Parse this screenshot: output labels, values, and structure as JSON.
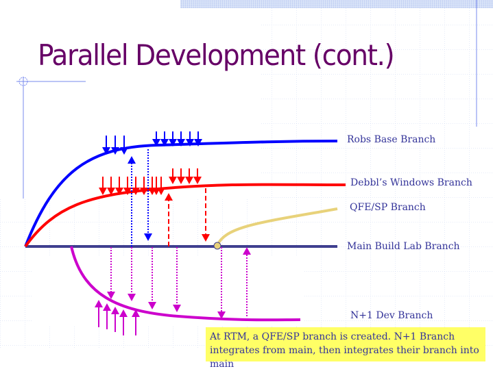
{
  "title": "Parallel Development (cont.)",
  "branches": {
    "robs_base": "Robs Base Branch",
    "debbl_windows": "Debbl’s Windows Branch",
    "qfe_sp": "QFE/SP Branch",
    "main_build_lab": "Main Build Lab Branch",
    "n1_dev": "N+1 Dev Branch"
  },
  "note": "At RTM, a QFE/SP branch is created. N+1 Branch integrates from main, then integrates their branch into main",
  "colors": {
    "title": "#660066",
    "label": "#333399",
    "blue": "#0000ff",
    "red": "#ff0000",
    "main": "#3f3f8f",
    "qfe": "#e8d27a",
    "n1": "#cc00cc",
    "note_bg": "#ffff66"
  }
}
